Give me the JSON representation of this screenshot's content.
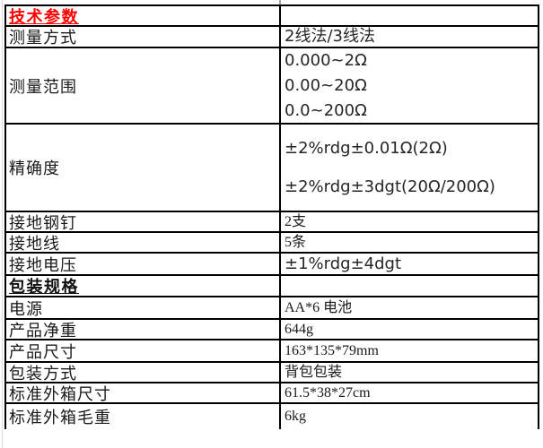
{
  "colors": {
    "section1_header_red": "#fe0000",
    "border_black": "#000000",
    "faint_gridline": "#d9d9d9"
  },
  "table": {
    "sections": [
      {
        "header": "技术参数",
        "rows": [
          {
            "label": "测量方式",
            "values": [
              "2线法/3线法"
            ]
          },
          {
            "label": "测量范围",
            "values": [
              "0.000~2Ω",
              "0.00~20Ω",
              "0.0~200Ω"
            ]
          },
          {
            "label": "精确度",
            "values": [
              "±2%rdg±0.01Ω(2Ω)",
              "±2%rdg±3dgt(20Ω/200Ω)"
            ]
          },
          {
            "label": "接地钢钉",
            "values": [
              "2支"
            ]
          },
          {
            "label": "接地线",
            "values": [
              "5条"
            ]
          },
          {
            "label": "接地电压",
            "values": [
              "±1%rdg±4dgt"
            ]
          }
        ]
      },
      {
        "header": "包装规格",
        "rows": [
          {
            "label": "电源",
            "values": [
              "AA*6 电池"
            ]
          },
          {
            "label": "产品净重",
            "values": [
              "644g"
            ]
          },
          {
            "label": "产品尺寸",
            "values": [
              "163*135*79mm"
            ]
          },
          {
            "label": "包装方式",
            "values": [
              "背包包装"
            ]
          },
          {
            "label": "标准外箱尺寸",
            "values": [
              "61.5*38*27cm"
            ]
          },
          {
            "label": "标准外箱毛重",
            "values": [
              "6kg"
            ]
          }
        ]
      }
    ]
  }
}
